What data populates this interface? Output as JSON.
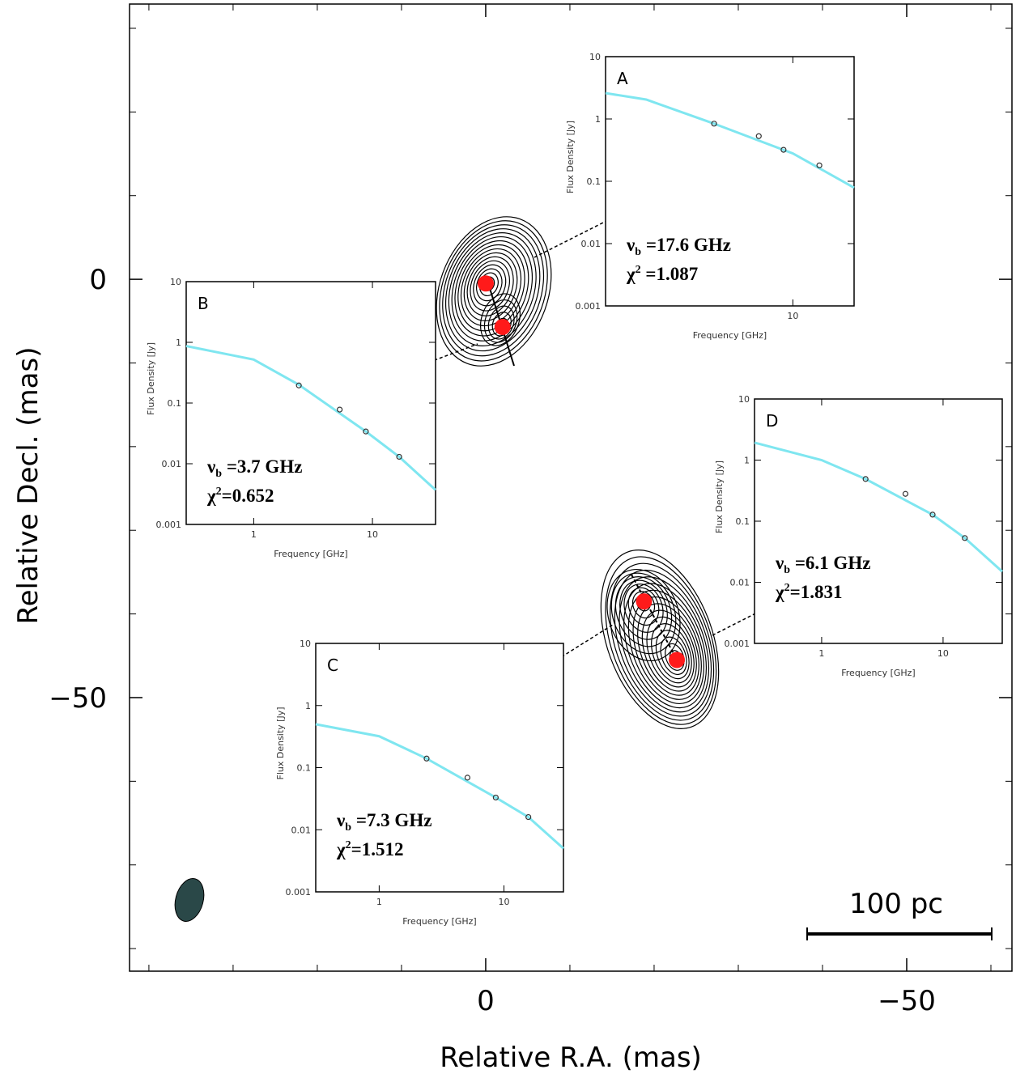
{
  "chart_data": [
    {
      "type": "scatter",
      "xlabel": "Relative R.A. (mas)",
      "ylabel": "Relative Decl. (mas)",
      "xlim": [
        42.3,
        -62.5
      ],
      "ylim": [
        -82.7,
        32.9
      ],
      "xticks": [
        0,
        {
          "value": -50,
          "label": "−50"
        }
      ],
      "yticks": [
        0,
        {
          "value": -50,
          "label": "−50"
        }
      ],
      "xminorticks": [
        40,
        30,
        20,
        10,
        -10,
        -20,
        -30,
        -40,
        -60
      ],
      "yminorticks": [
        30,
        20,
        10,
        -10,
        -20,
        -30,
        -40,
        -60,
        -70,
        -80
      ],
      "scale_label": "100 pc",
      "series": [
        {
          "color": "#ff1a1a",
          "x": [
            0,
            -2.0,
            -18.8,
            -22.7
          ],
          "values": [
            -0.5,
            -5.7,
            -38.5,
            -45.5
          ]
        }
      ]
    },
    {
      "type": "line",
      "label": "A",
      "xlabel": "Frequency [GHz]",
      "ylabel": "Flux Density [Jy]",
      "xlog": true,
      "ylog": true,
      "xlim": [
        1.2,
        20
      ],
      "ylim": [
        0.001,
        10
      ],
      "xticks": [
        10
      ],
      "yticks": [
        10,
        1,
        0.1,
        0.01,
        0.001
      ],
      "fit": {
        "color": "#7fe6f0",
        "x": [
          1.2,
          1.9,
          4.1,
          10,
          20
        ],
        "values": [
          2.6,
          2.05,
          0.84,
          0.28,
          0.079
        ]
      },
      "points": {
        "x": [
          4.1,
          6.8,
          9.0,
          13.5
        ],
        "values": [
          0.84,
          0.53,
          0.32,
          0.18
        ]
      },
      "break_label": {
        "symbol": "ν",
        "sub": "b",
        "text": " =17.6 GHz"
      },
      "chi_label": {
        "symbol": "χ",
        "sup": "2",
        "text": " =1.087"
      }
    },
    {
      "type": "line",
      "label": "B",
      "xlabel": "Frequency [GHz]",
      "ylabel": "Flux Density [Jy]",
      "xlog": true,
      "ylog": true,
      "xlim": [
        0.27,
        34
      ],
      "ylim": [
        0.001,
        10
      ],
      "xticks": [
        1,
        10
      ],
      "yticks": [
        10,
        1,
        0.1,
        0.01,
        0.001
      ],
      "fit": {
        "color": "#7fe6f0",
        "x": [
          0.27,
          1,
          2.4,
          8.8,
          16.8,
          34
        ],
        "values": [
          0.87,
          0.52,
          0.2,
          0.034,
          0.013,
          0.0037
        ]
      },
      "points": {
        "x": [
          2.4,
          5.3,
          8.8,
          16.8
        ],
        "values": [
          0.195,
          0.078,
          0.034,
          0.013
        ]
      },
      "break_label": {
        "symbol": "ν",
        "sub": "b",
        "text": " =3.7 GHz"
      },
      "chi_label": {
        "symbol": "χ",
        "sup": "2",
        "text": "=0.652"
      }
    },
    {
      "type": "line",
      "label": "C",
      "xlabel": "Frequency [GHz]",
      "ylabel": "Flux Density [Jy]",
      "xlog": true,
      "ylog": true,
      "xlim": [
        0.31,
        30
      ],
      "ylim": [
        0.001,
        10
      ],
      "xticks": [
        1,
        10
      ],
      "yticks": [
        10,
        1,
        0.1,
        0.01,
        0.001
      ],
      "fit": {
        "color": "#7fe6f0",
        "x": [
          0.31,
          1,
          2.4,
          8.6,
          15.7,
          30
        ],
        "values": [
          0.5,
          0.32,
          0.14,
          0.033,
          0.016,
          0.005
        ]
      },
      "points": {
        "x": [
          2.4,
          5.1,
          8.6,
          15.7
        ],
        "values": [
          0.14,
          0.069,
          0.033,
          0.016
        ]
      },
      "break_label": {
        "symbol": "ν",
        "sub": "b",
        "text": " =7.3 GHz"
      },
      "chi_label": {
        "symbol": "χ",
        "sup": "2",
        "text": "=1.512"
      }
    },
    {
      "type": "line",
      "label": "D",
      "xlabel": "Frequency [GHz]",
      "ylabel": "Flux Density [Jy]",
      "xlog": true,
      "ylog": true,
      "xlim": [
        0.28,
        30.7
      ],
      "ylim": [
        0.001,
        10
      ],
      "xticks": [
        1,
        10
      ],
      "yticks": [
        10,
        1,
        0.1,
        0.01,
        0.001
      ],
      "fit": {
        "color": "#7fe6f0",
        "x": [
          0.28,
          1,
          2.3,
          8.2,
          15.1,
          30.7
        ],
        "values": [
          1.93,
          1.0,
          0.49,
          0.128,
          0.053,
          0.015
        ]
      },
      "points": {
        "x": [
          2.3,
          4.9,
          8.2,
          15.1
        ],
        "values": [
          0.49,
          0.28,
          0.128,
          0.053
        ]
      },
      "break_label": {
        "symbol": "ν",
        "sub": "b",
        "text": " =6.1 GHz"
      },
      "chi_label": {
        "symbol": "χ",
        "sup": "2",
        "text": "=1.831"
      }
    }
  ]
}
